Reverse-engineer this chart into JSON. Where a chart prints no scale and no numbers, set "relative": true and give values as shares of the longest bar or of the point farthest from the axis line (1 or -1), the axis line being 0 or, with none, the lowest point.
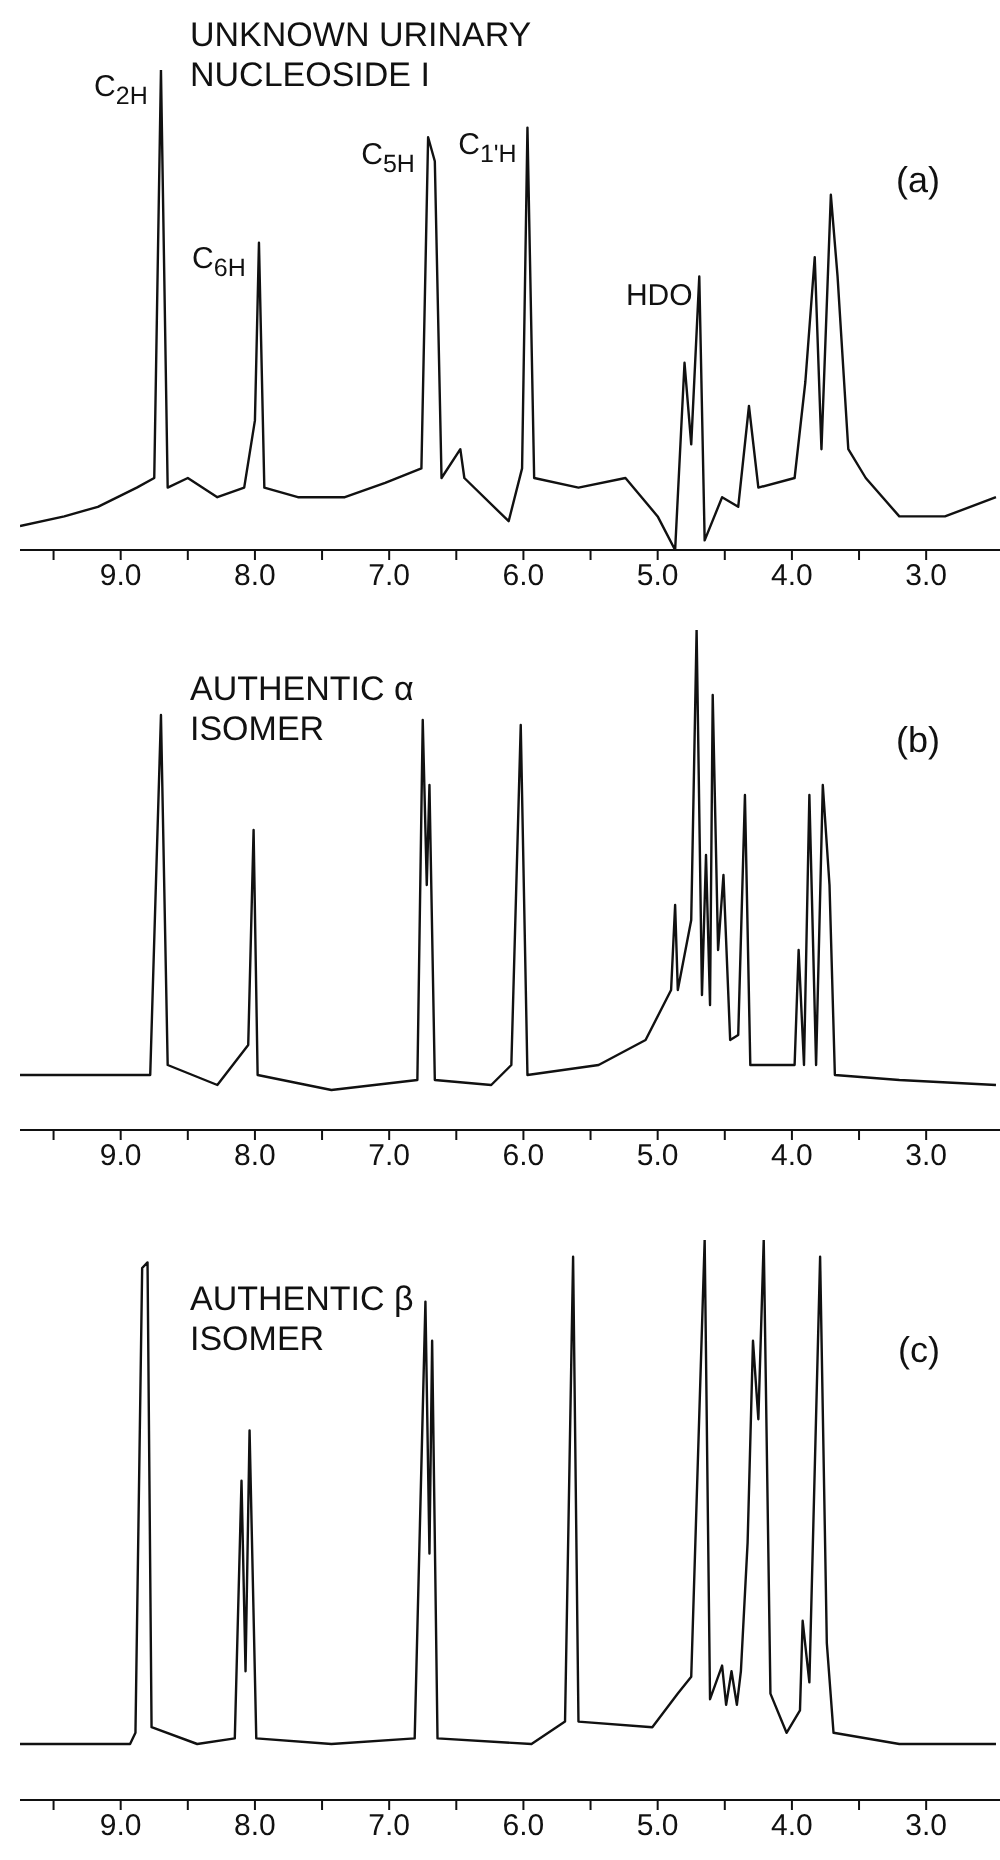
{
  "chart_data": [
    {
      "type": "line",
      "title": "UNKNOWN URINARY NUCLEOSIDE I",
      "relative": true,
      "color": "#111111",
      "x": [
        9.75,
        9.42,
        9.17,
        8.88,
        8.75,
        8.7,
        8.65,
        8.5,
        8.28,
        8.08,
        8.0,
        7.97,
        7.93,
        7.68,
        7.33,
        7.03,
        6.76,
        6.71,
        6.66,
        6.61,
        6.47,
        6.44,
        6.11,
        6.01,
        5.97,
        5.92,
        5.59,
        5.24,
        5.0,
        4.87,
        4.8,
        4.75,
        4.69,
        4.65,
        4.52,
        4.4,
        4.32,
        4.25,
        3.98,
        3.9,
        3.83,
        3.78,
        3.71,
        3.66,
        3.58,
        3.45,
        3.2,
        2.86,
        2.48
      ],
      "values": [
        0.05,
        0.07,
        0.09,
        0.13,
        0.15,
        1,
        0.13,
        0.15,
        0.11,
        0.13,
        0.27,
        0.64,
        0.13,
        0.11,
        0.11,
        0.14,
        0.17,
        0.86,
        0.81,
        0.15,
        0.21,
        0.15,
        0.06,
        0.17,
        0.88,
        0.15,
        0.13,
        0.15,
        0.07,
        0,
        0.39,
        0.22,
        0.57,
        0.02,
        0.11,
        0.09,
        0.3,
        0.13,
        0.15,
        0.35,
        0.61,
        0.21,
        0.74,
        0.57,
        0.21,
        0.15,
        0.07,
        0.07,
        0.11
      ],
      "xlim": [
        9.75,
        2.45
      ],
      "xticks": [
        {
          "value": 9.5,
          "label": null
        },
        {
          "value": 9,
          "label": "9.0"
        },
        {
          "value": 8.5,
          "label": null
        },
        {
          "value": 8,
          "label": "8.0"
        },
        {
          "value": 7.5,
          "label": null
        },
        {
          "value": 7,
          "label": "7.0"
        },
        {
          "value": 6.5,
          "label": null
        },
        {
          "value": 6,
          "label": "6.0"
        },
        {
          "value": 5.5,
          "label": null
        },
        {
          "value": 5,
          "label": "5.0"
        },
        {
          "value": 4.5,
          "label": null
        },
        {
          "value": 4,
          "label": "4.0"
        },
        {
          "value": 3.5,
          "label": null
        },
        {
          "value": 3,
          "label": "3.0"
        }
      ],
      "annotations": [
        {
          "text": "C$_{2H}$",
          "x": 8.7,
          "y": 1
        },
        {
          "text": "C$_{6H}$",
          "x": 7.97,
          "y": 0.64
        },
        {
          "text": "C$_{5H}$",
          "x": 6.71,
          "y": 0.86
        },
        {
          "text": "C$_{1'H}$",
          "x": 5.97,
          "y": 0.88
        },
        {
          "text": "HDO",
          "x": 4.69,
          "y": 0.57
        },
        "(a)"
      ]
    },
    {
      "type": "line",
      "title": "AUTHENTIC α ISOMER",
      "relative": true,
      "color": "#111111",
      "x": [
        9.75,
        9.17,
        8.78,
        8.7,
        8.65,
        8.28,
        8.05,
        8.01,
        7.98,
        7.43,
        6.79,
        6.75,
        6.72,
        6.7,
        6.66,
        6.24,
        6.09,
        6.02,
        5.97,
        5.44,
        5.09,
        4.9,
        4.87,
        4.85,
        4.75,
        4.71,
        4.67,
        4.64,
        4.61,
        4.59,
        4.55,
        4.51,
        4.46,
        4.4,
        4.35,
        4.31,
        4.08,
        3.98,
        3.95,
        3.91,
        3.87,
        3.82,
        3.77,
        3.72,
        3.68,
        3.2,
        2.48
      ],
      "values": [
        0.11,
        0.11,
        0.11,
        0.83,
        0.13,
        0.09,
        0.17,
        0.6,
        0.11,
        0.08,
        0.1,
        0.82,
        0.49,
        0.69,
        0.1,
        0.09,
        0.13,
        0.81,
        0.11,
        0.13,
        0.18,
        0.28,
        0.45,
        0.28,
        0.42,
        1,
        0.27,
        0.55,
        0.25,
        0.87,
        0.36,
        0.51,
        0.18,
        0.19,
        0.67,
        0.13,
        0.13,
        0.13,
        0.36,
        0.13,
        0.67,
        0.13,
        0.69,
        0.49,
        0.11,
        0.1,
        0.09
      ],
      "xlim": [
        9.75,
        2.45
      ],
      "xticks": [
        {
          "value": 9.5,
          "label": null
        },
        {
          "value": 9,
          "label": "9.0"
        },
        {
          "value": 8.5,
          "label": null
        },
        {
          "value": 8,
          "label": "8.0"
        },
        {
          "value": 7.5,
          "label": null
        },
        {
          "value": 7,
          "label": "7.0"
        },
        {
          "value": 6.5,
          "label": null
        },
        {
          "value": 6,
          "label": "6.0"
        },
        {
          "value": 5.5,
          "label": null
        },
        {
          "value": 5,
          "label": "5.0"
        },
        {
          "value": 4.5,
          "label": null
        },
        {
          "value": 4,
          "label": "4.0"
        },
        {
          "value": 3.5,
          "label": null
        },
        {
          "value": 3,
          "label": "3.0"
        }
      ],
      "annotations": [
        "(b)"
      ]
    },
    {
      "type": "line",
      "title": "AUTHENTIC β ISOMER",
      "relative": true,
      "color": "#111111",
      "x": [
        9.75,
        8.93,
        8.89,
        8.84,
        8.8,
        8.77,
        8.43,
        8.15,
        8.1,
        8.07,
        8.04,
        7.99,
        7.43,
        6.81,
        6.73,
        6.7,
        6.68,
        6.64,
        5.94,
        5.69,
        5.63,
        5.59,
        5.04,
        4.85,
        4.75,
        4.65,
        4.61,
        4.52,
        4.49,
        4.45,
        4.41,
        4.38,
        4.33,
        4.29,
        4.25,
        4.21,
        4.16,
        4.04,
        3.94,
        3.92,
        3.87,
        3.79,
        3.74,
        3.69,
        3.2,
        2.48
      ],
      "values": [
        0.1,
        0.1,
        0.12,
        0.95,
        0.96,
        0.13,
        0.1,
        0.11,
        0.57,
        0.23,
        0.66,
        0.11,
        0.1,
        0.11,
        0.89,
        0.44,
        0.82,
        0.11,
        0.1,
        0.14,
        0.97,
        0.14,
        0.13,
        0.19,
        0.22,
        1,
        0.18,
        0.24,
        0.17,
        0.23,
        0.17,
        0.23,
        0.46,
        0.82,
        0.68,
        1,
        0.19,
        0.12,
        0.16,
        0.32,
        0.21,
        0.97,
        0.28,
        0.12,
        0.1,
        0.1
      ],
      "xlim": [
        9.75,
        2.45
      ],
      "xticks": [
        {
          "value": 9.5,
          "label": null
        },
        {
          "value": 9,
          "label": "9.0"
        },
        {
          "value": 8.5,
          "label": null
        },
        {
          "value": 8,
          "label": "8.0"
        },
        {
          "value": 7.5,
          "label": null
        },
        {
          "value": 7,
          "label": "7.0"
        },
        {
          "value": 6.5,
          "label": null
        },
        {
          "value": 6,
          "label": "6.0"
        },
        {
          "value": 5.5,
          "label": null
        },
        {
          "value": 5,
          "label": "5.0"
        },
        {
          "value": 4.5,
          "label": null
        },
        {
          "value": 4,
          "label": "4.0"
        },
        {
          "value": 3.5,
          "label": null
        },
        {
          "value": 3,
          "label": "3.0"
        }
      ],
      "annotations": [
        "(c)"
      ]
    }
  ]
}
